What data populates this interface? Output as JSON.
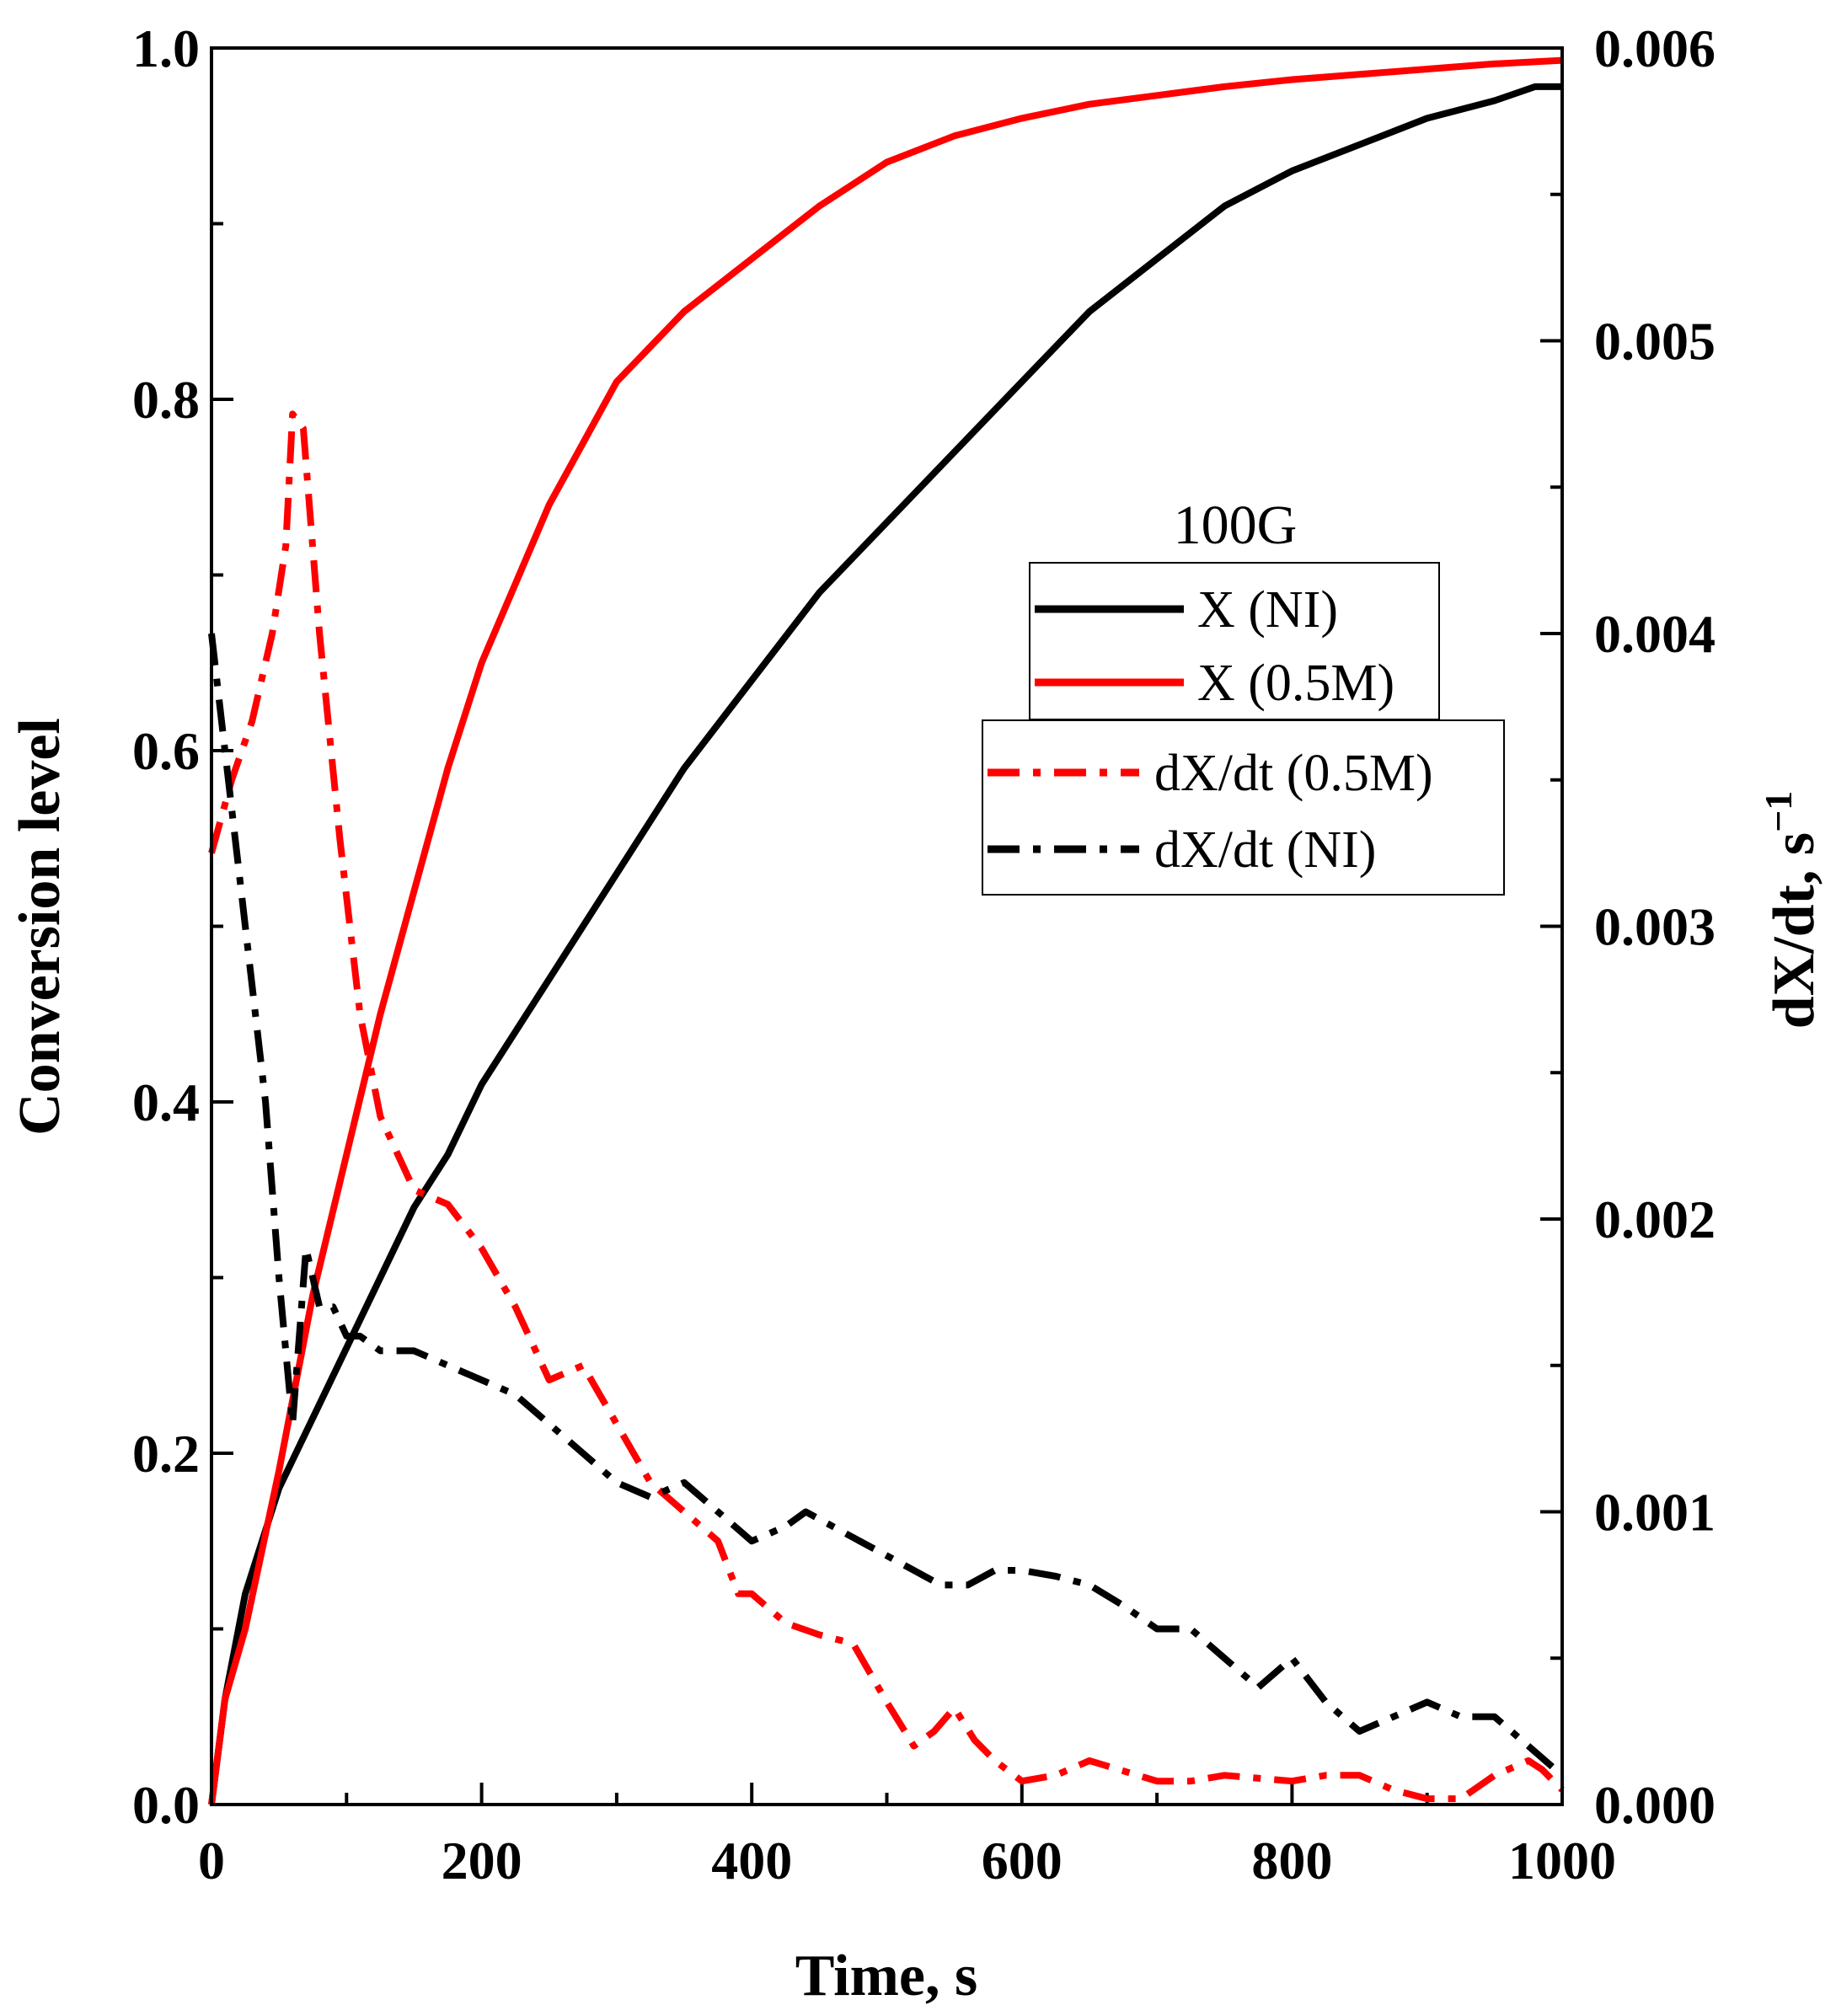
{
  "chart_data": {
    "type": "line",
    "title": "",
    "xlabel": "Time, s",
    "ylabel": "Conversion level",
    "y2label": "dX/dt, s",
    "y2label_sup": "−1",
    "xlim": [
      0,
      1000
    ],
    "ylim": [
      0,
      1.0
    ],
    "y2lim": [
      0,
      0.006
    ],
    "xticks": [
      "0",
      "200",
      "400",
      "600",
      "800",
      "1000"
    ],
    "yticks": [
      "0.0",
      "0.2",
      "0.4",
      "0.6",
      "0.8",
      "1.0"
    ],
    "y2ticks": [
      "0.000",
      "0.001",
      "0.002",
      "0.003",
      "0.004",
      "0.005",
      "0.006"
    ],
    "legend_title": "100G",
    "series": [
      {
        "name": "X (NI)",
        "axis": "left",
        "style": "solid",
        "color": "#000000",
        "x": [
          0,
          10,
          25,
          50,
          75,
          100,
          125,
          150,
          175,
          200,
          250,
          300,
          350,
          400,
          450,
          500,
          550,
          600,
          650,
          700,
          750,
          800,
          850,
          900,
          950,
          980,
          1000
        ],
        "y": [
          0,
          0.06,
          0.12,
          0.18,
          0.22,
          0.26,
          0.3,
          0.34,
          0.37,
          0.41,
          0.47,
          0.53,
          0.59,
          0.64,
          0.69,
          0.73,
          0.77,
          0.81,
          0.85,
          0.88,
          0.91,
          0.93,
          0.945,
          0.96,
          0.97,
          0.978,
          0.978
        ]
      },
      {
        "name": "X (0.5M)",
        "axis": "left",
        "style": "solid",
        "color": "#ff0000",
        "x": [
          0,
          10,
          25,
          50,
          75,
          100,
          125,
          150,
          175,
          200,
          250,
          300,
          350,
          400,
          450,
          500,
          550,
          600,
          650,
          700,
          750,
          800,
          850,
          900,
          950,
          1000
        ],
        "y": [
          0,
          0.06,
          0.1,
          0.19,
          0.29,
          0.37,
          0.45,
          0.52,
          0.59,
          0.65,
          0.74,
          0.81,
          0.85,
          0.88,
          0.91,
          0.935,
          0.95,
          0.96,
          0.968,
          0.973,
          0.978,
          0.982,
          0.985,
          0.988,
          0.991,
          0.993
        ]
      },
      {
        "name": "dX/dt (0.5M)",
        "axis": "right",
        "style": "dash-dot",
        "color": "#ff0000",
        "x": [
          0,
          15,
          30,
          45,
          55,
          60,
          68,
          80,
          95,
          110,
          125,
          150,
          175,
          200,
          225,
          250,
          275,
          300,
          325,
          350,
          375,
          390,
          400,
          425,
          450,
          475,
          500,
          520,
          535,
          550,
          565,
          580,
          600,
          625,
          650,
          700,
          725,
          750,
          800,
          825,
          850,
          875,
          900,
          925,
          950,
          975,
          985,
          1000
        ],
        "y": [
          0.00325,
          0.0035,
          0.0037,
          0.004,
          0.0043,
          0.00475,
          0.0047,
          0.004,
          0.0033,
          0.0027,
          0.00235,
          0.0021,
          0.00205,
          0.0019,
          0.0017,
          0.00145,
          0.0015,
          0.0013,
          0.0011,
          0.001,
          0.0009,
          0.00072,
          0.00072,
          0.00062,
          0.00058,
          0.00055,
          0.00035,
          0.0002,
          0.00025,
          0.00033,
          0.00022,
          0.00015,
          8e-05,
          0.0001,
          0.00015,
          8e-05,
          8e-05,
          0.0001,
          8e-05,
          0.0001,
          0.0001,
          5e-05,
          2e-05,
          2e-05,
          0.0001,
          0.00015,
          0.00012,
          5e-05
        ]
      },
      {
        "name": "dX/dt (NI)",
        "axis": "right",
        "style": "dash-dot",
        "color": "#000000",
        "x": [
          0,
          10,
          20,
          30,
          40,
          50,
          60,
          70,
          80,
          90,
          100,
          110,
          125,
          150,
          175,
          200,
          225,
          250,
          275,
          300,
          325,
          350,
          375,
          400,
          425,
          440,
          460,
          480,
          500,
          520,
          540,
          560,
          580,
          600,
          625,
          650,
          675,
          700,
          725,
          750,
          775,
          800,
          825,
          850,
          875,
          900,
          925,
          950,
          975,
          1000
        ],
        "y": [
          0.004,
          0.0036,
          0.0032,
          0.0028,
          0.0024,
          0.0018,
          0.0013,
          0.0019,
          0.0017,
          0.0017,
          0.0016,
          0.0016,
          0.00155,
          0.00155,
          0.0015,
          0.00145,
          0.0014,
          0.0013,
          0.0012,
          0.0011,
          0.00105,
          0.0011,
          0.001,
          0.0009,
          0.00095,
          0.001,
          0.00095,
          0.0009,
          0.00085,
          0.0008,
          0.00075,
          0.00075,
          0.0008,
          0.0008,
          0.00078,
          0.00075,
          0.00068,
          0.0006,
          0.0006,
          0.0005,
          0.0004,
          0.0005,
          0.00035,
          0.00025,
          0.0003,
          0.00035,
          0.0003,
          0.0003,
          0.0002,
          0.0001
        ]
      }
    ]
  }
}
